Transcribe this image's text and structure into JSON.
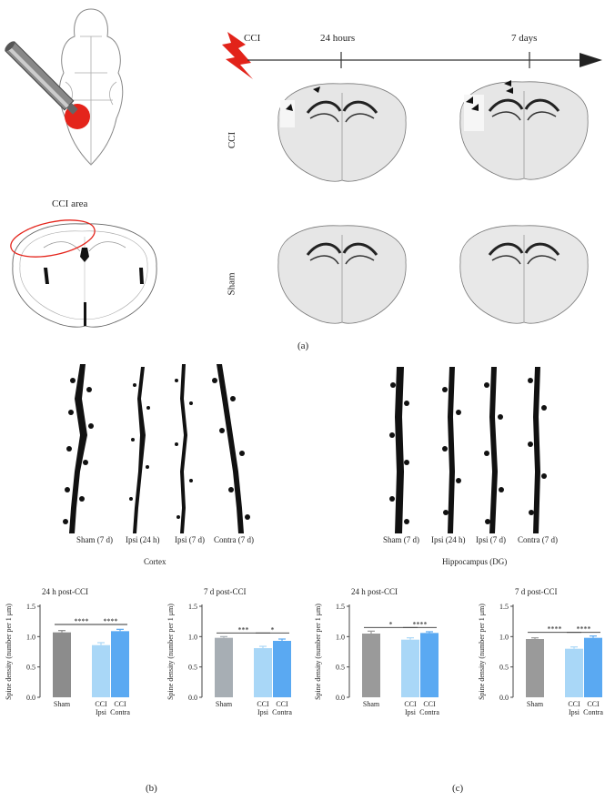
{
  "panel_a": {
    "timeline_start": "CCI",
    "timeline_24h": "24 hours",
    "timeline_7d": "7 days",
    "row_cci": "CCI",
    "row_sham": "Sham",
    "cci_area": "CCI area",
    "letter": "(a)"
  },
  "panel_b": {
    "region": "Cortex",
    "neuron_labels": [
      "Sham (7 d)",
      "Ipsi (24 h)",
      "Ipsi (7 d)",
      "Contra (7 d)"
    ],
    "letter": "(b)"
  },
  "panel_c": {
    "region": "Hippocampus (DG)",
    "neuron_labels": [
      "Sham (7 d)",
      "Ipsi (24 h)",
      "Ipsi (7 d)",
      "Contra (7 d)"
    ],
    "letter": "(c)"
  },
  "colors": {
    "sham_cortex": "#8c8c8c",
    "ipsi": "#a9d7f7",
    "contra": "#5aa9f2",
    "sham_cortex_7d": "#a7aeb4",
    "sham_hippo": "#9a9a9a",
    "lightning": "#e2231a",
    "injury": "#e4241b"
  },
  "chart_data": [
    {
      "type": "bar",
      "title": "24 h post-CCI",
      "ylabel": "Spine density (number per 1 μm)",
      "ylim": [
        0,
        1.5
      ],
      "yticks": [
        "0.0",
        "0.5",
        "1.0",
        "1.5"
      ],
      "categories": [
        "Sham",
        "CCI Ipsi",
        "CCI Contra"
      ],
      "tick_top": [
        "Sham",
        "CCI",
        "CCI"
      ],
      "tick_bottom": [
        "",
        "Ipsi",
        "Contra"
      ],
      "values": [
        1.07,
        0.86,
        1.09
      ],
      "errors": [
        0.03,
        0.04,
        0.03
      ],
      "significance": [
        {
          "from": 0,
          "to": 1,
          "label": "****",
          "y": 1.2
        },
        {
          "from": 1,
          "to": 2,
          "label": "****",
          "y": 1.2
        }
      ]
    },
    {
      "type": "bar",
      "title": "7 d post-CCI",
      "ylabel": "Spine density (number per 1 μm)",
      "ylim": [
        0,
        1.5
      ],
      "yticks": [
        "0.0",
        "0.5",
        "1.0",
        "1.5"
      ],
      "categories": [
        "Sham",
        "CCI Ipsi",
        "CCI Contra"
      ],
      "tick_top": [
        "Sham",
        "CCI",
        "CCI"
      ],
      "tick_bottom": [
        "",
        "Ipsi",
        "Contra"
      ],
      "values": [
        0.98,
        0.81,
        0.93
      ],
      "errors": [
        0.02,
        0.03,
        0.03
      ],
      "significance": [
        {
          "from": 0,
          "to": 1,
          "label": "***",
          "y": 1.06
        },
        {
          "from": 1,
          "to": 2,
          "label": "*",
          "y": 1.06
        }
      ]
    },
    {
      "type": "bar",
      "title": "24 h post-CCI",
      "ylabel": "Spine density (number per 1 μm)",
      "ylim": [
        0,
        1.5
      ],
      "yticks": [
        "0.0",
        "0.5",
        "1.0",
        "1.5"
      ],
      "categories": [
        "Sham",
        "CCI Ipsi",
        "CCI Contra"
      ],
      "tick_top": [
        "Sham",
        "CCI",
        "CCI"
      ],
      "tick_bottom": [
        "",
        "Ipsi",
        "Contra"
      ],
      "values": [
        1.05,
        0.95,
        1.06
      ],
      "errors": [
        0.04,
        0.03,
        0.02
      ],
      "significance": [
        {
          "from": 0,
          "to": 1,
          "label": "*",
          "y": 1.15
        },
        {
          "from": 1,
          "to": 2,
          "label": "****",
          "y": 1.15
        }
      ]
    },
    {
      "type": "bar",
      "title": "7 d post-CCI",
      "ylabel": "Spine density (number per 1 μm)",
      "ylim": [
        0,
        1.5
      ],
      "yticks": [
        "0.0",
        "0.5",
        "1.0",
        "1.5"
      ],
      "categories": [
        "Sham",
        "CCI Ipsi",
        "CCI Contra"
      ],
      "tick_top": [
        "Sham",
        "CCI",
        "CCI"
      ],
      "tick_bottom": [
        "",
        "Ipsi",
        "Contra"
      ],
      "values": [
        0.96,
        0.8,
        0.98
      ],
      "errors": [
        0.02,
        0.03,
        0.03
      ],
      "significance": [
        {
          "from": 0,
          "to": 1,
          "label": "****",
          "y": 1.07
        },
        {
          "from": 1,
          "to": 2,
          "label": "****",
          "y": 1.07
        }
      ]
    }
  ]
}
